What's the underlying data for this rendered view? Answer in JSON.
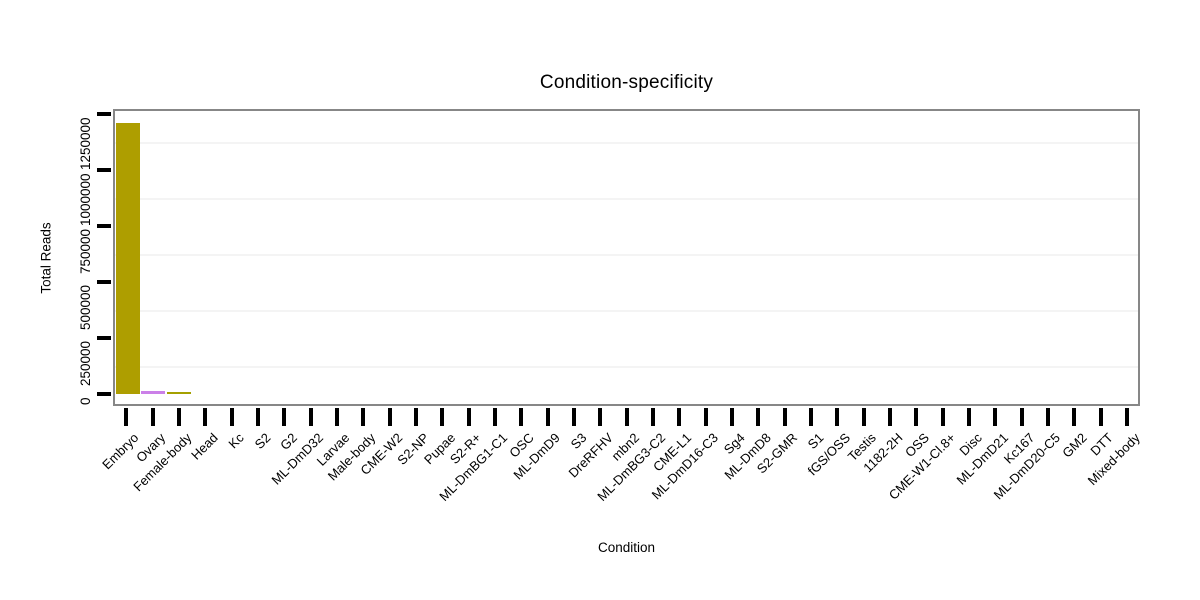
{
  "chart_data": {
    "type": "bar",
    "title": "Condition-specificity",
    "xlabel": "Condition",
    "ylabel": "Total Reads",
    "categories": [
      "Embryo",
      "Ovary",
      "Female-body",
      "Head",
      "Kc",
      "S2",
      "G2",
      "ML-DmD32",
      "Larvae",
      "Male-body",
      "CME-W2",
      "S2-NP",
      "Pupae",
      "S2-R+",
      "ML-DmBG1-C1",
      "OSC",
      "ML-DmD9",
      "S3",
      "DreRFHV",
      "mbn2",
      "ML-DmBG3-C2",
      "CME-L1",
      "ML-DmD16-C3",
      "Sg4",
      "ML-DmD8",
      "S2-GMR",
      "S1",
      "fGS/OSS",
      "Testis",
      "1182-2H",
      "OSS",
      "CME-W1-Cl.8+",
      "Disc",
      "ML-DmD21",
      "Kc167",
      "ML-DmD20-C5",
      "GM2",
      "DTT",
      "Mixed-body"
    ],
    "values": [
      1210000,
      15000,
      7000,
      0,
      0,
      0,
      0,
      0,
      0,
      0,
      0,
      0,
      0,
      0,
      0,
      0,
      0,
      0,
      0,
      0,
      0,
      0,
      0,
      0,
      0,
      0,
      0,
      0,
      0,
      0,
      0,
      0,
      0,
      0,
      0,
      0,
      0,
      0,
      0
    ],
    "bar_colors": {
      "Embryo": "#ae9e00",
      "Ovary": "#cb80e8",
      "Female-body": "#a4a000"
    },
    "default_bar_color": "#ae9e00",
    "y_ticks": [
      0,
      250000,
      500000,
      750000,
      1000000,
      1250000
    ],
    "y_tick_labels": [
      "0",
      "250000",
      "500000",
      "750000",
      "1000000",
      "1250000"
    ],
    "minor_gridline_values": [
      125000,
      375000,
      625000,
      875000,
      1125000
    ],
    "ylim": [
      0,
      1310000
    ],
    "grid": "horizontal-minor",
    "legend": "none",
    "axis_tick_color": "#000000",
    "panel_border_color": "#878787",
    "minor_gridline_color": "#f4f4f4"
  }
}
